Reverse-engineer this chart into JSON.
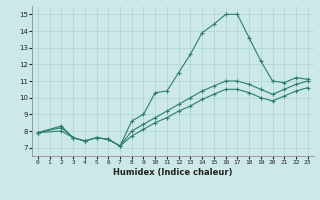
{
  "xlabel": "Humidex (Indice chaleur)",
  "bg_color": "#cce8e8",
  "grid_color": "#aad4d4",
  "line_color": "#2e7d6e",
  "xlim": [
    -0.5,
    23.5
  ],
  "ylim": [
    6.5,
    15.5
  ],
  "xticks": [
    0,
    1,
    2,
    3,
    4,
    5,
    6,
    7,
    8,
    9,
    10,
    11,
    12,
    13,
    14,
    15,
    16,
    17,
    18,
    19,
    20,
    21,
    22,
    23
  ],
  "yticks": [
    7,
    8,
    9,
    10,
    11,
    12,
    13,
    14,
    15
  ],
  "line1_x": [
    0,
    2,
    3,
    4,
    5,
    6,
    7,
    8,
    9,
    10,
    11,
    12,
    13,
    14,
    15,
    16,
    17,
    18,
    19,
    20,
    21,
    22,
    23
  ],
  "line1_y": [
    7.9,
    8.3,
    7.6,
    7.4,
    7.6,
    7.5,
    7.1,
    8.6,
    9.0,
    10.3,
    10.4,
    11.5,
    12.6,
    13.9,
    14.4,
    15.0,
    15.0,
    13.6,
    12.2,
    11.0,
    10.9,
    11.2,
    11.1
  ],
  "line2_x": [
    0,
    2,
    3,
    4,
    5,
    6,
    7,
    8,
    9,
    10,
    11,
    12,
    13,
    14,
    15,
    16,
    17,
    18,
    19,
    20,
    21,
    22,
    23
  ],
  "line2_y": [
    7.9,
    8.2,
    7.6,
    7.4,
    7.6,
    7.5,
    7.1,
    8.0,
    8.4,
    8.8,
    9.2,
    9.6,
    10.0,
    10.4,
    10.7,
    11.0,
    11.0,
    10.8,
    10.5,
    10.2,
    10.5,
    10.8,
    11.0
  ],
  "line3_x": [
    0,
    2,
    3,
    4,
    5,
    6,
    7,
    8,
    9,
    10,
    11,
    12,
    13,
    14,
    15,
    16,
    17,
    18,
    19,
    20,
    21,
    22,
    23
  ],
  "line3_y": [
    7.9,
    8.0,
    7.6,
    7.4,
    7.6,
    7.5,
    7.1,
    7.7,
    8.1,
    8.5,
    8.8,
    9.2,
    9.5,
    9.9,
    10.2,
    10.5,
    10.5,
    10.3,
    10.0,
    9.8,
    10.1,
    10.4,
    10.6
  ]
}
